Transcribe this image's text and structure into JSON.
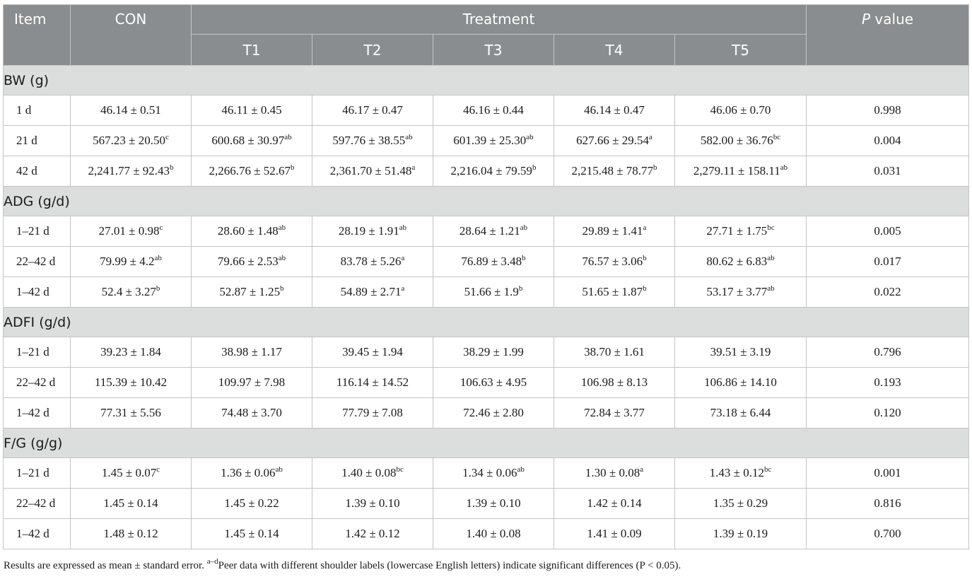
{
  "header": {
    "item": "Item",
    "con": "CON",
    "treatment": "Treatment",
    "p_italic": "P",
    "p_rest": " value",
    "treatments": [
      "T1",
      "T2",
      "T3",
      "T4",
      "T5"
    ]
  },
  "groups": [
    {
      "title": "BW (g)",
      "rows": [
        {
          "label": "1 d",
          "cells": [
            {
              "v": "46.14 ± 0.51",
              "s": ""
            },
            {
              "v": "46.11 ± 0.45",
              "s": ""
            },
            {
              "v": "46.17 ± 0.47",
              "s": ""
            },
            {
              "v": "46.16 ± 0.44",
              "s": ""
            },
            {
              "v": "46.14 ± 0.47",
              "s": ""
            },
            {
              "v": "46.06 ± 0.70",
              "s": ""
            }
          ],
          "p": "0.998"
        },
        {
          "label": "21 d",
          "cells": [
            {
              "v": "567.23 ± 20.50",
              "s": "c"
            },
            {
              "v": "600.68 ± 30.97",
              "s": "ab"
            },
            {
              "v": "597.76 ± 38.55",
              "s": "ab"
            },
            {
              "v": "601.39 ± 25.30",
              "s": "ab"
            },
            {
              "v": "627.66 ± 29.54",
              "s": "a"
            },
            {
              "v": "582.00 ± 36.76",
              "s": "bc"
            }
          ],
          "p": "0.004"
        },
        {
          "label": "42 d",
          "cells": [
            {
              "v": "2,241.77 ± 92.43",
              "s": "b"
            },
            {
              "v": "2,266.76 ± 52.67",
              "s": "b"
            },
            {
              "v": "2,361.70 ± 51.48",
              "s": "a"
            },
            {
              "v": "2,216.04 ± 79.59",
              "s": "b"
            },
            {
              "v": "2,215.48 ± 78.77",
              "s": "b"
            },
            {
              "v": "2,279.11 ± 158.11",
              "s": "ab"
            }
          ],
          "p": "0.031"
        }
      ]
    },
    {
      "title": "ADG (g/d)",
      "rows": [
        {
          "label": "1–21 d",
          "cells": [
            {
              "v": "27.01 ± 0.98",
              "s": "c"
            },
            {
              "v": "28.60 ± 1.48",
              "s": "ab"
            },
            {
              "v": "28.19 ± 1.91",
              "s": "ab"
            },
            {
              "v": "28.64 ± 1.21",
              "s": "ab"
            },
            {
              "v": "29.89 ± 1.41",
              "s": "a"
            },
            {
              "v": "27.71 ± 1.75",
              "s": "bc"
            }
          ],
          "p": "0.005"
        },
        {
          "label": "22–42 d",
          "cells": [
            {
              "v": "79.99 ± 4.2",
              "s": "ab"
            },
            {
              "v": "79.66 ± 2.53",
              "s": "ab"
            },
            {
              "v": "83.78 ± 5.26",
              "s": "a"
            },
            {
              "v": "76.89 ± 3.48",
              "s": "b"
            },
            {
              "v": "76.57 ± 3.06",
              "s": "b"
            },
            {
              "v": "80.62 ± 6.83",
              "s": "ab"
            }
          ],
          "p": "0.017"
        },
        {
          "label": "1–42 d",
          "cells": [
            {
              "v": "52.4 ± 3.27",
              "s": "b"
            },
            {
              "v": "52.87 ± 1.25",
              "s": "b"
            },
            {
              "v": "54.89 ± 2.71",
              "s": "a"
            },
            {
              "v": "51.66 ± 1.9",
              "s": "b"
            },
            {
              "v": "51.65 ± 1.87",
              "s": "b"
            },
            {
              "v": "53.17 ± 3.77",
              "s": "ab"
            }
          ],
          "p": "0.022"
        }
      ]
    },
    {
      "title": "ADFI (g/d)",
      "rows": [
        {
          "label": "1–21 d",
          "cells": [
            {
              "v": "39.23 ± 1.84",
              "s": ""
            },
            {
              "v": "38.98 ± 1.17",
              "s": ""
            },
            {
              "v": "39.45 ± 1.94",
              "s": ""
            },
            {
              "v": "38.29 ± 1.99",
              "s": ""
            },
            {
              "v": "38.70 ± 1.61",
              "s": ""
            },
            {
              "v": "39.51 ± 3.19",
              "s": ""
            }
          ],
          "p": "0.796"
        },
        {
          "label": "22–42 d",
          "cells": [
            {
              "v": "115.39 ± 10.42",
              "s": ""
            },
            {
              "v": "109.97 ± 7.98",
              "s": ""
            },
            {
              "v": "116.14 ± 14.52",
              "s": ""
            },
            {
              "v": "106.63 ± 4.95",
              "s": ""
            },
            {
              "v": "106.98 ± 8.13",
              "s": ""
            },
            {
              "v": "106.86 ± 14.10",
              "s": ""
            }
          ],
          "p": "0.193"
        },
        {
          "label": "1–42 d",
          "cells": [
            {
              "v": "77.31 ± 5.56",
              "s": ""
            },
            {
              "v": "74.48 ± 3.70",
              "s": ""
            },
            {
              "v": "77.79 ± 7.08",
              "s": ""
            },
            {
              "v": "72.46 ± 2.80",
              "s": ""
            },
            {
              "v": "72.84 ± 3.77",
              "s": ""
            },
            {
              "v": "73.18 ± 6.44",
              "s": ""
            }
          ],
          "p": "0.120"
        }
      ]
    },
    {
      "title": "F/G (g/g)",
      "rows": [
        {
          "label": "1–21 d",
          "cells": [
            {
              "v": "1.45 ± 0.07",
              "s": "c"
            },
            {
              "v": "1.36 ± 0.06",
              "s": "ab"
            },
            {
              "v": "1.40 ± 0.08",
              "s": "bc"
            },
            {
              "v": "1.34 ± 0.06",
              "s": "ab"
            },
            {
              "v": "1.30 ± 0.08",
              "s": "a"
            },
            {
              "v": "1.43 ± 0.12",
              "s": "bc"
            }
          ],
          "p": "0.001"
        },
        {
          "label": "22–42 d",
          "cells": [
            {
              "v": "1.45 ± 0.14",
              "s": ""
            },
            {
              "v": "1.45 ± 0.22",
              "s": ""
            },
            {
              "v": "1.39 ± 0.10",
              "s": ""
            },
            {
              "v": "1.39 ± 0.10",
              "s": ""
            },
            {
              "v": "1.42 ± 0.14",
              "s": ""
            },
            {
              "v": "1.35 ± 0.29",
              "s": ""
            }
          ],
          "p": "0.816"
        },
        {
          "label": "1–42 d",
          "cells": [
            {
              "v": "1.48 ± 0.12",
              "s": ""
            },
            {
              "v": "1.45 ± 0.14",
              "s": ""
            },
            {
              "v": "1.42 ± 0.12",
              "s": ""
            },
            {
              "v": "1.40 ± 0.08",
              "s": ""
            },
            {
              "v": "1.41 ± 0.09",
              "s": ""
            },
            {
              "v": "1.39 ± 0.19",
              "s": ""
            }
          ],
          "p": "0.700"
        }
      ]
    }
  ],
  "footnote": {
    "text_a": "Results are expressed as mean ± standard error. ",
    "sup": "a–d",
    "text_b": "Peer data with different shoulder labels (lowercase English letters) indicate significant differences (P < 0.05)."
  },
  "colors": {
    "header_bg": "#8a8d8f",
    "group_bg": "#dcdddd",
    "border": "#c4c4c4"
  }
}
